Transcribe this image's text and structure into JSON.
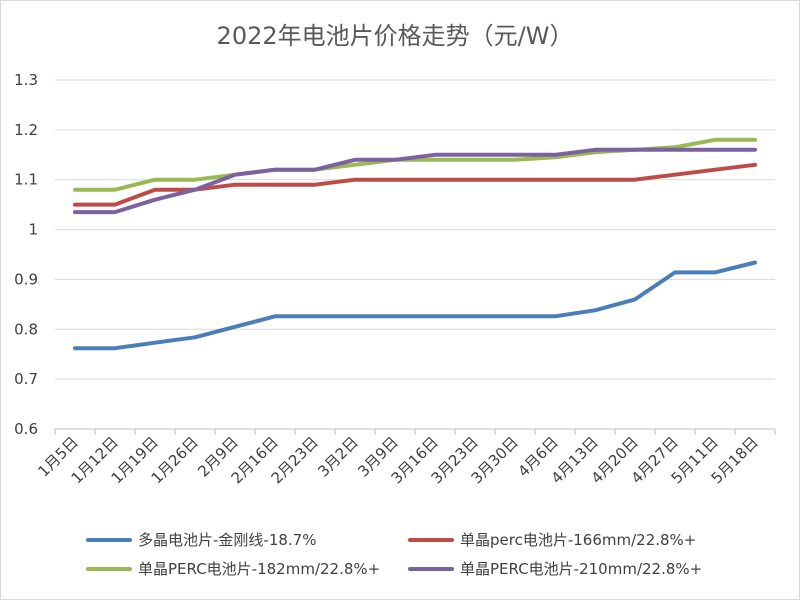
{
  "chart_data": {
    "type": "line",
    "title": "2022年电池片价格走势（元/W）",
    "xlabel": "",
    "ylabel": "",
    "ylim": [
      0.6,
      1.3
    ],
    "yticks": [
      "0.6",
      "0.7",
      "0.8",
      "0.9",
      "1",
      "1.1",
      "1.2",
      "1.3"
    ],
    "yticks_values": [
      0.6,
      0.7,
      0.8,
      0.9,
      1.0,
      1.1,
      1.2,
      1.3
    ],
    "grid": true,
    "legend_position": "bottom",
    "categories": [
      "1月5日",
      "1月12日",
      "1月19日",
      "1月26日",
      "2月9日",
      "2月16日",
      "2月23日",
      "3月2日",
      "3月9日",
      "3月16日",
      "3月23日",
      "3月30日",
      "4月6日",
      "4月13日",
      "4月20日",
      "4月27日",
      "5月11日",
      "5月18日"
    ],
    "series": [
      {
        "name": "多晶电池片-金刚线-18.7%",
        "color": "#4a7ebb",
        "values": [
          0.762,
          0.762,
          0.773,
          0.784,
          0.805,
          0.826,
          0.826,
          0.826,
          0.826,
          0.826,
          0.826,
          0.826,
          0.826,
          0.838,
          0.86,
          0.914,
          0.914,
          0.934
        ]
      },
      {
        "name": "单晶perc电池片-166mm/22.8%+",
        "color": "#be4b48",
        "values": [
          1.05,
          1.05,
          1.08,
          1.08,
          1.09,
          1.09,
          1.09,
          1.1,
          1.1,
          1.1,
          1.1,
          1.1,
          1.1,
          1.1,
          1.1,
          1.11,
          1.12,
          1.13
        ]
      },
      {
        "name": "单晶PERC电池片-182mm/22.8%+",
        "color": "#98b954",
        "values": [
          1.08,
          1.08,
          1.1,
          1.1,
          1.11,
          1.12,
          1.12,
          1.13,
          1.14,
          1.14,
          1.14,
          1.14,
          1.145,
          1.155,
          1.16,
          1.165,
          1.18,
          1.18
        ]
      },
      {
        "name": "单晶PERC电池片-210mm/22.8%+",
        "color": "#7d60a0",
        "values": [
          1.035,
          1.035,
          1.06,
          1.08,
          1.11,
          1.12,
          1.12,
          1.14,
          1.14,
          1.15,
          1.15,
          1.15,
          1.15,
          1.16,
          1.16,
          1.16,
          1.16,
          1.16
        ]
      }
    ]
  }
}
